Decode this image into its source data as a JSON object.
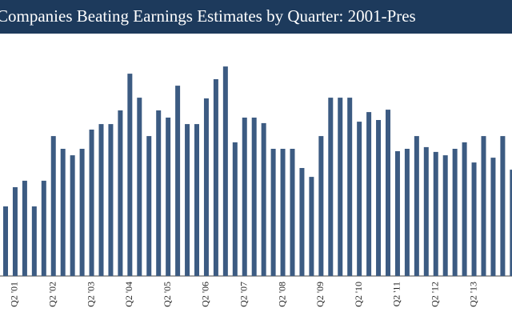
{
  "chart_data": {
    "type": "bar",
    "title": "Companies Beating Earnings Estimates by Quarter: 2001-Pres",
    "color": "#3c5b82",
    "ylim": [
      0,
      100
    ],
    "categories": [
      null,
      "Q2 '01",
      null,
      null,
      null,
      "Q2 '02",
      null,
      null,
      null,
      "Q2 '03",
      null,
      null,
      null,
      "Q2 '04",
      null,
      null,
      null,
      "Q2 '05",
      null,
      null,
      null,
      "Q2 '06",
      null,
      null,
      null,
      "Q2 '07",
      null,
      null,
      null,
      "Q2 '08",
      null,
      null,
      null,
      "Q2 '09",
      null,
      null,
      null,
      "Q2 '10",
      null,
      null,
      null,
      "Q2 '11",
      null,
      null,
      null,
      "Q2 '12",
      null,
      null,
      null,
      "Q2 '13",
      null,
      null,
      null,
      null
    ],
    "values": [
      29,
      37,
      39.7,
      29,
      39.7,
      58.3,
      53,
      50.3,
      53,
      61,
      63.3,
      63.3,
      69,
      84.3,
      74.3,
      58.3,
      69,
      66,
      79.3,
      63.3,
      63.3,
      74,
      82,
      87.3,
      55.7,
      66,
      66,
      63.7,
      53,
      53,
      53,
      45,
      41.3,
      58.3,
      74.3,
      74.3,
      74.3,
      64.3,
      68.3,
      65,
      69.3,
      52,
      53,
      58.3,
      53.7,
      51.7,
      50.3,
      53,
      55.7,
      47.3,
      58.3,
      49.3,
      58.3,
      44.3
    ]
  }
}
